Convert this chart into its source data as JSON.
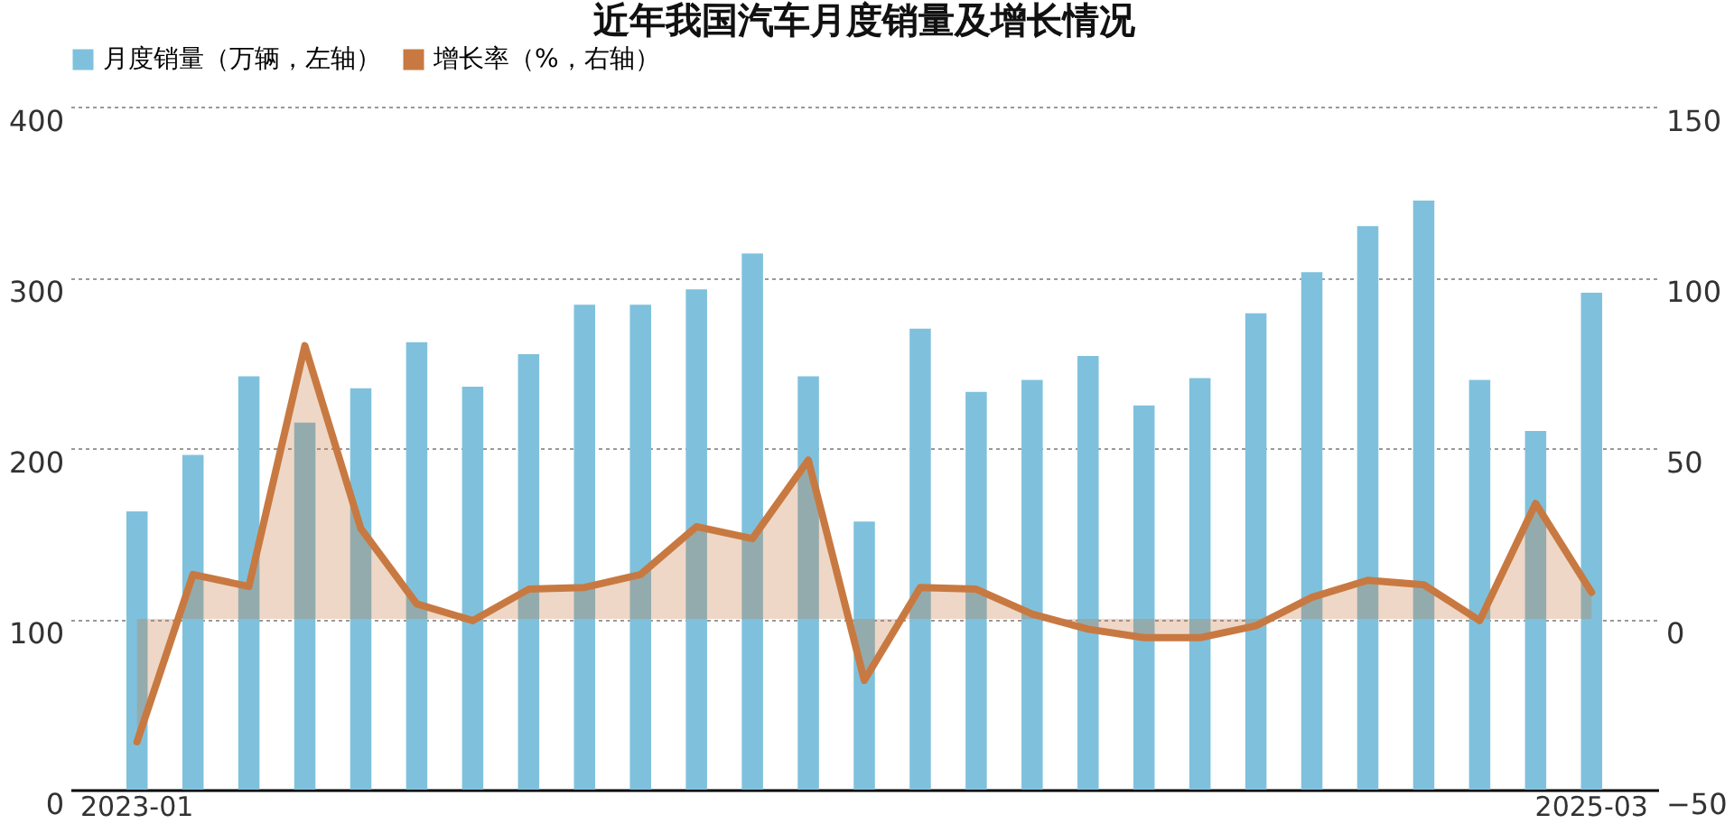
{
  "chart_data": {
    "type": "bar",
    "title": "近年我国汽车月度销量及增长情况",
    "categories": [
      "2023-01",
      null,
      null,
      null,
      null,
      null,
      null,
      null,
      null,
      null,
      null,
      null,
      null,
      null,
      null,
      null,
      null,
      null,
      null,
      null,
      null,
      null,
      null,
      null,
      null,
      null,
      "2025-03"
    ],
    "series": [
      {
        "name": "月度销量（万辆，左轴）",
        "color": "#7fc1dc",
        "values": [
          163,
          196,
          242,
          215,
          235,
          262,
          236,
          255,
          284,
          284,
          293,
          314,
          242,
          157,
          270,
          233,
          240,
          254,
          225,
          241,
          279,
          303,
          330,
          345,
          240,
          210,
          291
        ]
      },
      {
        "name": "增长率（%，右轴）",
        "type": "area",
        "axis": "y2",
        "color": "#c87941",
        "values": [
          -36,
          13,
          9.5,
          80,
          26.5,
          4.4,
          -0.5,
          8.7,
          9.2,
          13,
          27,
          23.5,
          46.5,
          -18,
          9.2,
          8.7,
          1.4,
          -3,
          -5.5,
          -5.5,
          -2,
          6.3,
          11.3,
          10,
          -0.5,
          33.8,
          7.8
        ]
      }
    ],
    "ylim": [
      0,
      400
    ],
    "yticks": [
      0,
      100,
      200,
      300,
      400
    ],
    "y2lim": [
      -50,
      150
    ],
    "y2ticks": [
      -50,
      0,
      50,
      100,
      150
    ],
    "grid": "y",
    "legend": "top"
  }
}
